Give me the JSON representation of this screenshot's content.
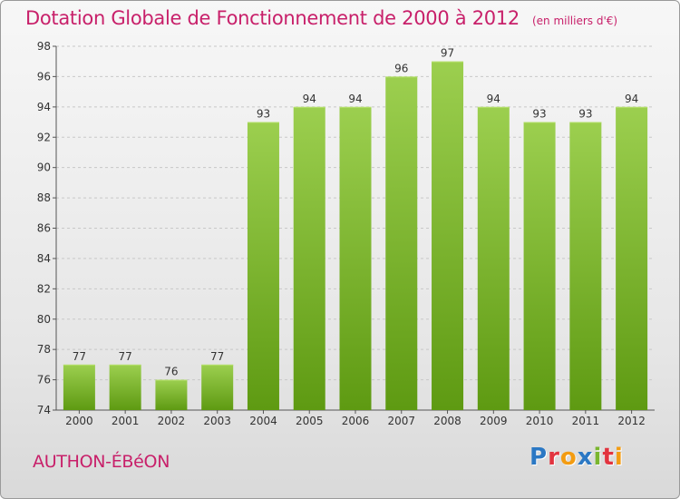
{
  "header": {
    "title": "Dotation Globale de Fonctionnement de 2000 à 2012",
    "unit_note": "(en milliers d'€)"
  },
  "footer": {
    "commune": "AUTHON-ÉBéON",
    "logo_letters": [
      {
        "ch": "P",
        "color": "#2b78c4"
      },
      {
        "ch": "r",
        "color": "#e2343f"
      },
      {
        "ch": "o",
        "color": "#f39c12"
      },
      {
        "ch": "x",
        "color": "#2b78c4"
      },
      {
        "ch": "i",
        "color": "#7ab62f"
      },
      {
        "ch": "t",
        "color": "#e2343f"
      },
      {
        "ch": "i",
        "color": "#f39c12"
      }
    ]
  },
  "colors": {
    "title": "#c8206a",
    "bar_top": "#9ccf4f",
    "bar_bottom": "#5e9a12",
    "grid": "#c8c8c8"
  },
  "chart_data": {
    "type": "bar",
    "title": "Dotation Globale de Fonctionnement de 2000 à 2012",
    "subtitle": "(en milliers d'€)",
    "categories": [
      "2000",
      "2001",
      "2002",
      "2003",
      "2004",
      "2005",
      "2006",
      "2007",
      "2008",
      "2009",
      "2010",
      "2011",
      "2012"
    ],
    "values": [
      77,
      77,
      76,
      77,
      93,
      94,
      94,
      96,
      97,
      94,
      93,
      93,
      94
    ],
    "ylim": [
      74,
      98
    ],
    "yticks": [
      74,
      76,
      78,
      80,
      82,
      84,
      86,
      88,
      90,
      92,
      94,
      96,
      98
    ],
    "grid": "horizontal dashed",
    "legend": "none"
  }
}
